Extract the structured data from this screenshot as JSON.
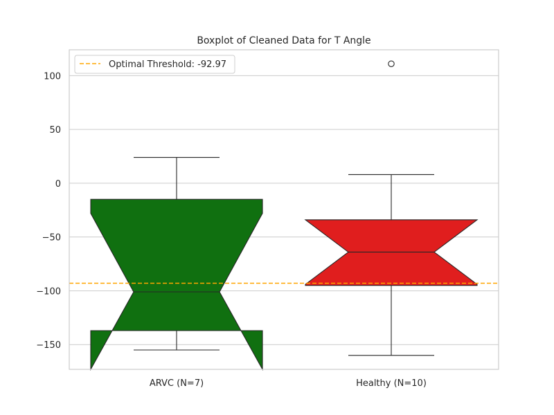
{
  "chart_data": {
    "type": "boxplot",
    "title": "Boxplot of Cleaned Data for T Angle",
    "xlabel": "",
    "ylabel": "",
    "ylim": [
      -173,
      124
    ],
    "yticks": [
      100,
      50,
      0,
      -50,
      -100,
      -150
    ],
    "ytick_labels": [
      "100",
      "50",
      "0",
      "−50",
      "−100",
      "−150"
    ],
    "grid": true,
    "notched": true,
    "categories": [
      "ARVC (N=7)",
      "Healthy (N=10)"
    ],
    "boxes": [
      {
        "category": "ARVC (N=7)",
        "whisker_low": -155,
        "q1": -137,
        "median": -101,
        "q3": -15,
        "whisker_high": 24,
        "notch_low": -173,
        "notch_high": -28,
        "outliers": [],
        "color": "#107010"
      },
      {
        "category": "Healthy (N=10)",
        "whisker_low": -160,
        "q1": -95,
        "median": -64,
        "q3": -34,
        "whisker_high": 8,
        "notch_low": -94,
        "notch_high": -34,
        "outliers": [
          111
        ],
        "color": "#e01e1e"
      }
    ],
    "threshold": {
      "value": -92.97,
      "label": "Optimal Threshold: -92.97",
      "color": "#ffa500",
      "style": "dashed"
    },
    "legend_position": "top-left"
  }
}
